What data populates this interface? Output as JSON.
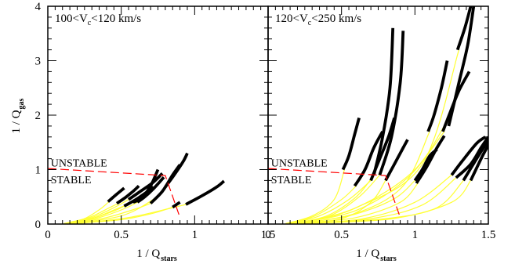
{
  "chart_data": {
    "type": "line",
    "xlabel": {
      "main": "1 / Q",
      "sub": "stars"
    },
    "ylabel": {
      "main": "1 / Q",
      "sub": "gas"
    },
    "ylim": [
      0,
      4
    ],
    "grid": false,
    "colors": {
      "model": "#ffff33",
      "observed": "#000000",
      "threshold": "#ff0000",
      "axes": "#000000"
    },
    "y_ticks": [
      "0",
      "1",
      "2",
      "3",
      "4"
    ],
    "panels": [
      {
        "label": {
          "pre": "100<V",
          "sub": "c",
          "post": "<120 km/s"
        },
        "xlim": [
          0,
          1.5
        ],
        "x_ticks": [
          "0",
          "0.5",
          "1",
          "1.5"
        ],
        "region_labels": [
          {
            "text": "UNSTABLE",
            "x": 0.02,
            "y": 1.06
          },
          {
            "text": "STABLE",
            "x": 0.02,
            "y": 0.75
          }
        ],
        "threshold": [
          [
            0,
            1.02
          ],
          [
            0.8,
            0.89
          ],
          [
            0.9,
            0.12
          ]
        ],
        "tracks": [
          {
            "model": [
              [
                0.12,
                0.01
              ],
              [
                0.25,
                0.1
              ],
              [
                0.36,
                0.28
              ],
              [
                0.42,
                0.42
              ]
            ],
            "observed": [
              [
                0.41,
                0.41
              ],
              [
                0.47,
                0.55
              ],
              [
                0.52,
                0.66
              ]
            ]
          },
          {
            "model": [
              [
                0.11,
                0.01
              ],
              [
                0.28,
                0.12
              ],
              [
                0.42,
                0.3
              ],
              [
                0.48,
                0.38
              ]
            ],
            "observed": [
              [
                0.47,
                0.38
              ],
              [
                0.53,
                0.49
              ],
              [
                0.58,
                0.6
              ],
              [
                0.62,
                0.7
              ]
            ]
          },
          {
            "model": [
              [
                0.13,
                0.01
              ],
              [
                0.3,
                0.12
              ],
              [
                0.45,
                0.3
              ],
              [
                0.55,
                0.45
              ]
            ],
            "observed": [
              [
                0.55,
                0.45
              ],
              [
                0.63,
                0.6
              ],
              [
                0.71,
                0.75
              ],
              [
                0.78,
                0.93
              ]
            ]
          },
          {
            "model": [
              [
                0.14,
                0.01
              ],
              [
                0.32,
                0.12
              ],
              [
                0.47,
                0.28
              ],
              [
                0.58,
                0.4
              ]
            ],
            "observed": [
              [
                0.58,
                0.4
              ],
              [
                0.64,
                0.48
              ],
              [
                0.7,
                0.7
              ],
              [
                0.75,
                1.0
              ]
            ]
          },
          {
            "model": [
              [
                0.15,
                0.01
              ],
              [
                0.35,
                0.12
              ],
              [
                0.52,
                0.28
              ],
              [
                0.61,
                0.4
              ]
            ],
            "observed": [
              [
                0.61,
                0.4
              ],
              [
                0.66,
                0.5
              ],
              [
                0.72,
                0.65
              ],
              [
                0.79,
                0.86
              ]
            ]
          },
          {
            "model": [
              [
                0.12,
                0.01
              ],
              [
                0.3,
                0.1
              ],
              [
                0.45,
                0.24
              ],
              [
                0.52,
                0.33
              ]
            ],
            "observed": [
              [
                0.52,
                0.33
              ],
              [
                0.6,
                0.45
              ],
              [
                0.68,
                0.6
              ],
              [
                0.72,
                0.68
              ]
            ]
          },
          {
            "model": [
              [
                0.16,
                0.01
              ],
              [
                0.4,
                0.12
              ],
              [
                0.6,
                0.28
              ],
              [
                0.7,
                0.38
              ]
            ],
            "observed": [
              [
                0.7,
                0.38
              ],
              [
                0.78,
                0.6
              ],
              [
                0.85,
                0.9
              ],
              [
                0.9,
                1.09
              ]
            ]
          },
          {
            "model": [
              [
                0.18,
                0.01
              ],
              [
                0.5,
                0.08
              ],
              [
                0.72,
                0.2
              ],
              [
                0.85,
                0.31
              ]
            ],
            "observed": [
              [
                0.85,
                0.31
              ],
              [
                0.9,
                0.4
              ]
            ]
          },
          {
            "model": [
              [
                0.2,
                0.01
              ],
              [
                0.55,
                0.12
              ],
              [
                0.82,
                0.28
              ],
              [
                0.94,
                0.36
              ]
            ],
            "observed": [
              [
                0.94,
                0.36
              ],
              [
                1.05,
                0.52
              ],
              [
                1.15,
                0.68
              ],
              [
                1.2,
                0.79
              ]
            ]
          },
          {
            "model": [
              [
                0.18,
                0.01
              ],
              [
                0.5,
                0.15
              ],
              [
                0.7,
                0.42
              ],
              [
                0.81,
                0.68
              ]
            ],
            "observed": [
              [
                0.8,
                0.68
              ],
              [
                0.86,
                0.9
              ],
              [
                0.92,
                1.14
              ],
              [
                0.95,
                1.3
              ]
            ]
          }
        ]
      },
      {
        "label": {
          "pre": "120<V",
          "sub": "c",
          "post": "<250 km/s"
        },
        "xlim": [
          0,
          1.5
        ],
        "x_ticks": [
          "0",
          "0.5",
          "1",
          "1.5"
        ],
        "region_labels": [
          {
            "text": "UNSTABLE",
            "x": 0.02,
            "y": 1.06
          },
          {
            "text": "STABLE",
            "x": 0.02,
            "y": 0.75
          }
        ],
        "threshold": [
          [
            0,
            1.02
          ],
          [
            0.8,
            0.89
          ],
          [
            0.9,
            0.12
          ]
        ],
        "tracks": [
          {
            "model": [
              [
                0.12,
                0.01
              ],
              [
                0.3,
                0.15
              ],
              [
                0.45,
                0.45
              ],
              [
                0.52,
                1.0
              ]
            ],
            "observed": [
              [
                0.51,
                1.0
              ],
              [
                0.55,
                1.25
              ],
              [
                0.59,
                1.65
              ],
              [
                0.62,
                1.95
              ]
            ]
          },
          {
            "model": [
              [
                0.14,
                0.01
              ],
              [
                0.32,
                0.15
              ],
              [
                0.5,
                0.45
              ],
              [
                0.6,
                0.7
              ]
            ],
            "observed": [
              [
                0.59,
                0.7
              ],
              [
                0.66,
                1.0
              ],
              [
                0.72,
                1.4
              ],
              [
                0.78,
                1.7
              ]
            ]
          },
          {
            "model": [
              [
                0.15,
                0.01
              ],
              [
                0.35,
                0.15
              ],
              [
                0.55,
                0.45
              ],
              [
                0.7,
                0.8
              ]
            ],
            "observed": [
              [
                0.7,
                0.8
              ],
              [
                0.76,
                1.2
              ],
              [
                0.82,
                1.6
              ],
              [
                0.86,
                1.95
              ]
            ]
          },
          {
            "model": [
              [
                0.16,
                0.01
              ],
              [
                0.4,
                0.15
              ],
              [
                0.6,
                0.5
              ],
              [
                0.72,
                0.9
              ]
            ],
            "observed": [
              [
                0.72,
                0.9
              ],
              [
                0.78,
                1.6
              ],
              [
                0.83,
                2.5
              ],
              [
                0.85,
                3.6
              ]
            ]
          },
          {
            "model": [
              [
                0.17,
                0.01
              ],
              [
                0.42,
                0.15
              ],
              [
                0.62,
                0.5
              ],
              [
                0.76,
                0.9
              ]
            ],
            "observed": [
              [
                0.76,
                0.9
              ],
              [
                0.84,
                1.6
              ],
              [
                0.9,
                2.6
              ],
              [
                0.92,
                3.55
              ]
            ]
          },
          {
            "model": [
              [
                0.18,
                0.01
              ],
              [
                0.5,
                0.1
              ],
              [
                0.7,
                0.4
              ],
              [
                0.8,
                0.8
              ]
            ],
            "observed": [
              [
                0.8,
                0.8
              ],
              [
                0.86,
                1.1
              ],
              [
                0.92,
                1.4
              ],
              [
                0.95,
                1.55
              ]
            ]
          },
          {
            "model": [
              [
                0.2,
                0.01
              ],
              [
                0.55,
                0.15
              ],
              [
                0.85,
                0.45
              ],
              [
                1.0,
                0.8
              ]
            ],
            "observed": [
              [
                1.0,
                0.8
              ],
              [
                1.05,
                1.0
              ],
              [
                1.1,
                1.25
              ],
              [
                1.15,
                1.37
              ]
            ]
          },
          {
            "model": [
              [
                0.22,
                0.01
              ],
              [
                0.6,
                0.12
              ],
              [
                0.9,
                0.4
              ],
              [
                1.02,
                0.75
              ]
            ],
            "observed": [
              [
                1.01,
                0.75
              ],
              [
                1.08,
                1.05
              ],
              [
                1.15,
                1.4
              ],
              [
                1.2,
                1.62
              ]
            ]
          },
          {
            "model": [
              [
                0.22,
                0.01
              ],
              [
                0.65,
                0.1
              ],
              [
                1.0,
                0.4
              ],
              [
                1.25,
                0.9
              ]
            ],
            "observed": [
              [
                1.25,
                0.9
              ],
              [
                1.32,
                1.15
              ],
              [
                1.42,
                1.48
              ],
              [
                1.48,
                1.6
              ]
            ]
          },
          {
            "model": [
              [
                0.23,
                0.01
              ],
              [
                0.7,
                0.1
              ],
              [
                1.05,
                0.35
              ],
              [
                1.28,
                0.85
              ]
            ],
            "observed": [
              [
                1.28,
                0.85
              ],
              [
                1.38,
                1.1
              ],
              [
                1.45,
                1.4
              ],
              [
                1.5,
                1.6
              ]
            ]
          },
          {
            "model": [
              [
                0.24,
                0.01
              ],
              [
                0.8,
                0.1
              ],
              [
                1.15,
                0.3
              ],
              [
                1.33,
                0.8
              ]
            ],
            "observed": [
              [
                1.33,
                0.8
              ],
              [
                1.42,
                1.2
              ],
              [
                1.5,
                1.55
              ],
              [
                1.53,
                1.75
              ]
            ]
          },
          {
            "model": [
              [
                0.25,
                0.01
              ],
              [
                0.85,
                0.1
              ],
              [
                1.25,
                0.4
              ],
              [
                1.38,
                0.8
              ]
            ],
            "observed": [
              [
                1.38,
                0.8
              ],
              [
                1.46,
                1.25
              ],
              [
                1.53,
                1.6
              ],
              [
                1.57,
                1.82
              ]
            ]
          },
          {
            "model": [
              [
                0.2,
                0.01
              ],
              [
                0.6,
                0.2
              ],
              [
                0.92,
                0.7
              ],
              [
                1.1,
                1.7
              ]
            ],
            "observed": [
              [
                1.09,
                1.7
              ],
              [
                1.13,
                2.0
              ],
              [
                1.18,
                2.5
              ],
              [
                1.22,
                3.0
              ]
            ]
          },
          {
            "model": [
              [
                0.18,
                0.01
              ],
              [
                0.6,
                0.25
              ],
              [
                0.95,
                0.85
              ],
              [
                1.2,
                1.7
              ]
            ],
            "observed": [
              [
                1.19,
                1.7
              ],
              [
                1.24,
                2.05
              ],
              [
                1.3,
                2.45
              ],
              [
                1.37,
                2.8
              ]
            ]
          },
          {
            "model": [
              [
                0.2,
                0.01
              ],
              [
                0.6,
                0.3
              ],
              [
                1.0,
                1.0
              ],
              [
                1.24,
                2.0
              ]
            ],
            "observed": [
              [
                1.23,
                1.8
              ],
              [
                1.3,
                2.6
              ],
              [
                1.36,
                3.3
              ],
              [
                1.4,
                4.0
              ]
            ]
          },
          {
            "model": [
              [
                0.22,
                0.01
              ],
              [
                0.6,
                0.3
              ],
              [
                1.05,
                1.1
              ],
              [
                1.3,
                3.2
              ]
            ],
            "observed": [
              [
                1.29,
                3.2
              ],
              [
                1.34,
                3.6
              ],
              [
                1.38,
                4.0
              ]
            ]
          }
        ]
      }
    ]
  }
}
